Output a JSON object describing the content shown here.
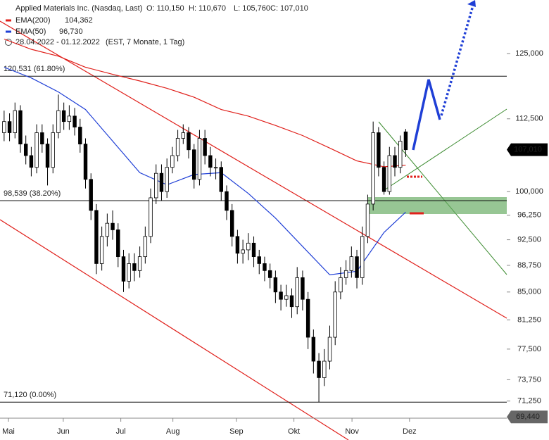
{
  "chart_data": {
    "type": "candlestick",
    "title": "Applied Materials Inc. (Nasdaq, Last)",
    "quote": [
      {
        "value": 110.15,
        "label": "O: 110,150"
      },
      {
        "value": 110.67,
        "label": "H: 110,670"
      },
      {
        "value": 105.76,
        "label": "L: 105,760"
      },
      {
        "value": 107.01,
        "label": "C: 107,010"
      }
    ],
    "period": "28.04.2022 - 01.12.2022",
    "period_note": "(EST, 7 Monate, 1 Tag)",
    "log_scale": true,
    "xlim": [
      -0.5,
      75.5
    ],
    "ylim": [
      68.83,
      136.35
    ],
    "xticks": [
      {
        "value": 0.8,
        "label": "Mai"
      },
      {
        "value": 10.9,
        "label": "Jun"
      },
      {
        "value": 21.5,
        "label": "Jul"
      },
      {
        "value": 31.1,
        "label": "Aug"
      },
      {
        "value": 42.8,
        "label": "Sep"
      },
      {
        "value": 53.4,
        "label": "Okt"
      },
      {
        "value": 64.1,
        "label": "Nov"
      },
      {
        "value": 74.7,
        "label": "Dez"
      }
    ],
    "yticks": [
      {
        "value": 125,
        "label": "125,000"
      },
      {
        "value": 112.5,
        "label": "112,500"
      },
      {
        "value": 100,
        "label": "100,000"
      },
      {
        "value": 96.25,
        "label": "96,250"
      },
      {
        "value": 92.5,
        "label": "92,500"
      },
      {
        "value": 88.75,
        "label": "88,750"
      },
      {
        "value": 85,
        "label": "85,000"
      },
      {
        "value": 81.25,
        "label": "81,250"
      },
      {
        "value": 77.5,
        "label": "77,500"
      },
      {
        "value": 73.75,
        "label": "73,750"
      },
      {
        "value": 71.25,
        "label": "71,250"
      }
    ],
    "up_color": "#ffffff",
    "down_color": "#000000",
    "candles": [
      [
        110,
        114,
        108.5,
        112
      ],
      [
        112,
        113.5,
        108.5,
        110
      ],
      [
        110,
        115.5,
        109,
        114
      ],
      [
        114,
        115,
        106.5,
        108
      ],
      [
        108,
        109.5,
        104.5,
        106
      ],
      [
        106,
        107.5,
        102.5,
        104
      ],
      [
        104,
        111.5,
        103,
        110
      ],
      [
        110,
        111.5,
        106.5,
        108
      ],
      [
        108,
        109,
        101,
        104
      ],
      [
        104,
        111.5,
        103,
        110
      ],
      [
        110,
        117,
        109,
        114
      ],
      [
        114,
        115.5,
        110.5,
        112
      ],
      [
        112,
        115,
        110.5,
        113
      ],
      [
        113,
        114.5,
        109.5,
        111
      ],
      [
        111,
        112.5,
        106.5,
        108
      ],
      [
        108,
        109,
        100.5,
        102
      ],
      [
        102,
        103,
        95.5,
        97
      ],
      [
        97,
        98,
        87.5,
        89
      ],
      [
        89,
        94.5,
        88,
        93
      ],
      [
        93,
        96.5,
        91.5,
        95
      ],
      [
        95,
        97,
        92.5,
        94
      ],
      [
        94,
        95,
        88.5,
        90
      ],
      [
        90,
        91,
        85,
        86.5
      ],
      [
        86.5,
        90.5,
        85.5,
        89
      ],
      [
        89,
        90.5,
        86.5,
        88
      ],
      [
        88,
        91.5,
        87,
        90
      ],
      [
        90,
        94.5,
        89,
        93
      ],
      [
        93,
        100.5,
        92,
        99
      ],
      [
        99,
        104.5,
        98,
        103
      ],
      [
        103,
        104.5,
        98.5,
        100
      ],
      [
        100,
        105.5,
        99,
        104
      ],
      [
        104,
        107.5,
        103,
        106
      ],
      [
        106,
        110.5,
        105,
        109
      ],
      [
        109,
        111.5,
        108,
        110
      ],
      [
        110,
        111,
        105.5,
        107
      ],
      [
        107,
        108,
        100.5,
        102
      ],
      [
        102,
        110.5,
        101,
        109
      ],
      [
        109,
        110.5,
        104.5,
        106
      ],
      [
        106,
        107.5,
        102.5,
        104
      ],
      [
        104,
        105.5,
        102,
        104
      ],
      [
        104,
        105,
        98.5,
        100
      ],
      [
        100,
        101,
        95.5,
        97
      ],
      [
        97,
        98,
        91.5,
        93
      ],
      [
        93,
        94,
        89,
        90.5
      ],
      [
        90.5,
        92.5,
        89,
        91
      ],
      [
        91,
        93.5,
        89.5,
        92
      ],
      [
        92,
        93,
        88.5,
        90
      ],
      [
        90,
        91,
        87.5,
        89
      ],
      [
        89,
        90,
        86.5,
        88
      ],
      [
        88,
        89,
        85.5,
        87
      ],
      [
        87,
        88,
        83.5,
        85
      ],
      [
        85,
        86,
        82.5,
        84
      ],
      [
        84,
        86,
        83,
        84.5
      ],
      [
        84.5,
        85.5,
        81.5,
        83
      ],
      [
        83,
        88.5,
        82,
        87
      ],
      [
        87,
        88,
        82.5,
        84
      ],
      [
        84,
        85,
        77.5,
        79
      ],
      [
        79,
        80,
        74.5,
        76
      ],
      [
        76,
        77,
        71.12,
        74
      ],
      [
        74,
        77.5,
        73,
        76
      ],
      [
        76,
        80.5,
        75,
        79
      ],
      [
        79,
        86.5,
        78,
        85
      ],
      [
        85,
        88.5,
        84,
        87
      ],
      [
        87,
        89.5,
        86,
        88
      ],
      [
        88,
        91.5,
        87,
        90
      ],
      [
        90,
        91,
        85.5,
        87
      ],
      [
        87,
        94.5,
        86,
        93
      ],
      [
        93,
        99.5,
        92,
        98
      ],
      [
        98,
        112,
        97,
        110
      ],
      [
        110,
        111,
        102.5,
        104
      ],
      [
        104,
        105,
        99.5,
        100
      ],
      [
        100,
        107.5,
        99.5,
        106
      ],
      [
        106,
        107.5,
        102.5,
        104
      ],
      [
        104,
        109.5,
        103,
        108.5
      ],
      [
        110.15,
        110.67,
        105.76,
        107.01
      ]
    ],
    "series": [
      {
        "name": "EMA(200)",
        "color": "#e0201b",
        "last": {
          "value": 104.362,
          "label": "104,362"
        },
        "x": [
          0,
          5,
          10,
          15,
          20,
          25,
          30,
          35,
          40,
          45,
          50,
          55,
          60,
          65,
          70,
          74
        ],
        "values": [
          128,
          125.9,
          124.5,
          122.3,
          120.9,
          119.6,
          118.2,
          116.5,
          114.2,
          113,
          111.3,
          109.5,
          107.3,
          105.1,
          104.1,
          104.362
        ]
      },
      {
        "name": "EMA(50)",
        "color": "#1f3fd6",
        "last": {
          "value": 96.73,
          "label": "96,730"
        },
        "x": [
          0,
          5,
          10,
          15,
          20,
          25,
          30,
          35,
          40,
          45,
          50,
          55,
          60,
          65,
          70,
          74
        ],
        "values": [
          122.3,
          120.2,
          117.5,
          114.2,
          108.5,
          103.1,
          101.1,
          102.8,
          103.1,
          99.7,
          95.8,
          91.5,
          87.4,
          87.9,
          93.6,
          96.73
        ]
      }
    ],
    "levels": [
      {
        "value": 120.531,
        "label": "120,531 (61.80%)"
      },
      {
        "value": 98.539,
        "label": "98,539 (38.20%)"
      },
      {
        "value": 71.12,
        "label": "71,120 (0.00%)"
      }
    ],
    "price_badges": [
      {
        "value": 107.01,
        "label": "107,010",
        "color": "#000000"
      },
      {
        "value": 69.44,
        "label": "69,440",
        "color": "#666666"
      }
    ]
  }
}
